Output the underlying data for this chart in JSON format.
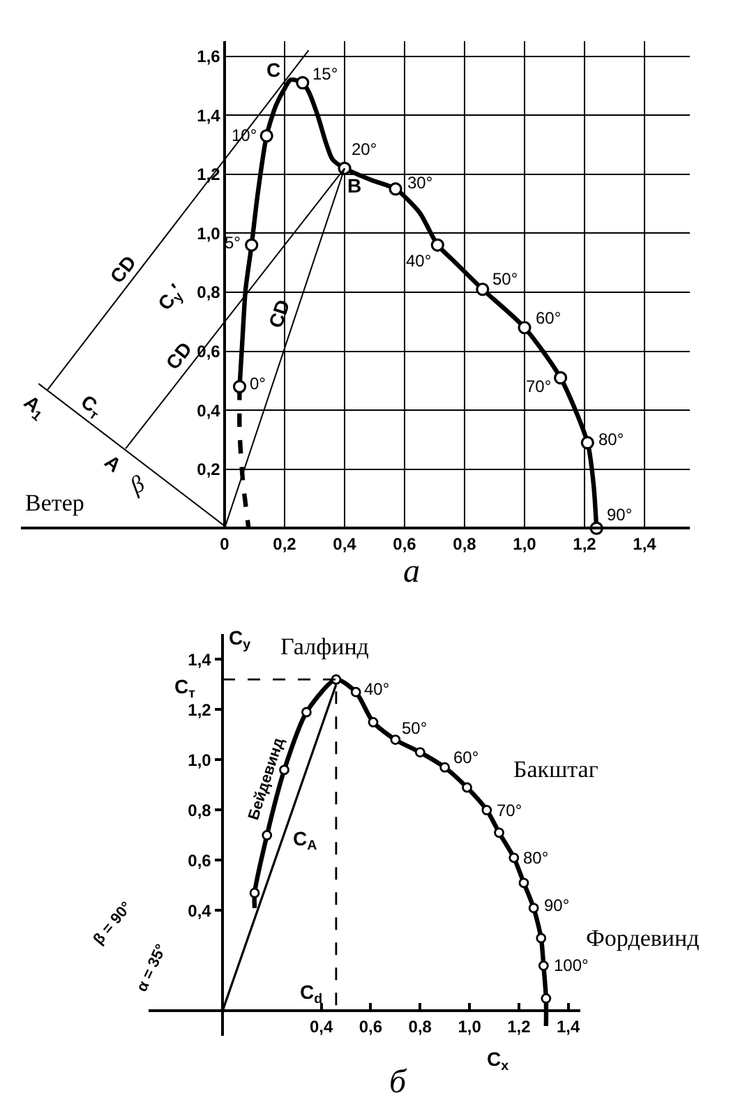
{
  "chart_data": [
    {
      "type": "line",
      "grid": true,
      "xlim": [
        -0.68,
        1.55
      ],
      "ylim": [
        0,
        1.65
      ],
      "xticks": [
        0,
        {
          "value": 0.2,
          "label": "0,2"
        },
        {
          "value": 0.4,
          "label": "0,4"
        },
        {
          "value": 0.6,
          "label": "0,6"
        },
        {
          "value": 0.8,
          "label": "0,8"
        },
        {
          "value": 1.0,
          "label": "1,0"
        },
        {
          "value": 1.2,
          "label": "1,2"
        },
        {
          "value": 1.4,
          "label": "1,4"
        }
      ],
      "yticks": [
        {
          "value": 0.2,
          "label": "0,2"
        },
        {
          "value": 0.4,
          "label": "0,4"
        },
        {
          "value": 0.6,
          "label": "0,6"
        },
        {
          "value": 0.8,
          "label": "0,8"
        },
        {
          "value": 1.0,
          "label": "1,0"
        },
        {
          "value": 1.2,
          "label": "1,2"
        },
        {
          "value": 1.4,
          "label": "1,4"
        },
        {
          "value": 1.6,
          "label": "1,6"
        }
      ],
      "series": [
        {
          "color": "#000000",
          "x": [
            0.05,
            0.06,
            0.07,
            0.09,
            0.11,
            0.14,
            0.17,
            0.2,
            0.22,
            0.26,
            0.28,
            0.31,
            0.34,
            0.36,
            0.4,
            0.49,
            0.57,
            0.65,
            0.71,
            0.76,
            0.86,
            1.0,
            1.12,
            1.21,
            1.23,
            1.24
          ],
          "values": [
            0.48,
            0.65,
            0.81,
            0.96,
            1.13,
            1.33,
            1.43,
            1.49,
            1.52,
            1.51,
            1.48,
            1.4,
            1.3,
            1.25,
            1.22,
            1.18,
            1.15,
            1.07,
            0.96,
            0.91,
            0.81,
            0.68,
            0.51,
            0.29,
            0.15,
            0
          ]
        },
        {
          "color": "#000000",
          "line_style": "dashed",
          "x": [
            0.05,
            0.05,
            0.06,
            0.08
          ],
          "values": [
            0.48,
            0.33,
            0.17,
            0
          ]
        },
        {
          "type": "scatter",
          "marker": "circle",
          "color": "#000000",
          "x": [
            0.05,
            0.09,
            0.14,
            0.26,
            0.4,
            0.57,
            0.71,
            0.86,
            1.0,
            1.12,
            1.21,
            1.24
          ],
          "values": [
            0.48,
            0.96,
            1.33,
            1.51,
            1.22,
            1.15,
            0.96,
            0.81,
            0.68,
            0.51,
            0.29,
            0
          ]
        },
        {
          "color": "#000000",
          "x": [
            -0.59,
            0.28
          ],
          "values": [
            0.47,
            1.62
          ]
        },
        {
          "color": "#000000",
          "x": [
            -0.33,
            0.4
          ],
          "values": [
            0.27,
            1.22
          ]
        },
        {
          "color": "#000000",
          "x": [
            0,
            0.4
          ],
          "values": [
            0,
            1.22
          ]
        },
        {
          "color": "#000000",
          "x": [
            -0.62,
            0.01
          ],
          "values": [
            0.49,
            0
          ]
        }
      ],
      "annotations": [
        {
          "text": "0°",
          "x": 0.05,
          "y": 0.48
        },
        {
          "text": "5°",
          "x": 0.09,
          "y": 0.96
        },
        {
          "text": "10°",
          "x": 0.14,
          "y": 1.33
        },
        {
          "text": "15°",
          "x": 0.26,
          "y": 1.51
        },
        {
          "text": "20°",
          "x": 0.4,
          "y": 1.22
        },
        {
          "text": "30°",
          "x": 0.57,
          "y": 1.15
        },
        {
          "text": "40°",
          "x": 0.71,
          "y": 0.96
        },
        {
          "text": "50°",
          "x": 0.86,
          "y": 0.81
        },
        {
          "text": "60°",
          "x": 1.0,
          "y": 0.68
        },
        {
          "text": "70°",
          "x": 1.12,
          "y": 0.51
        },
        {
          "text": "80°",
          "x": 1.21,
          "y": 0.29
        },
        {
          "text": "90°",
          "x": 1.24,
          "y": 0
        },
        {
          "text": "C",
          "x": 0.2,
          "y": 1.5
        },
        {
          "text": "B",
          "x": 0.4,
          "y": 1.22
        },
        "CD",
        "C$_{y}$′",
        "CD",
        "CD",
        "C$_{т}$",
        "A$_{1}$",
        "A",
        "β",
        "Ветер",
        "а"
      ]
    },
    {
      "type": "line",
      "xlim": [
        -0.3,
        1.45
      ],
      "ylim": [
        -0.1,
        1.5
      ],
      "xlabel": "C$_{x}$",
      "ylabel": "C$_{y}$",
      "xticks": [
        {
          "value": 0.4,
          "label": "0,4"
        },
        {
          "value": 0.6,
          "label": "0,6"
        },
        {
          "value": 0.8,
          "label": "0,8"
        },
        {
          "value": 1.0,
          "label": "1,0"
        },
        {
          "value": 1.2,
          "label": "1,2"
        },
        {
          "value": 1.4,
          "label": "1,4"
        }
      ],
      "yticks": [
        {
          "value": 0.4,
          "label": "0,4"
        },
        {
          "value": 0.6,
          "label": "0,6"
        },
        {
          "value": 0.8,
          "label": "0,8"
        },
        {
          "value": 1.0,
          "label": "1,0"
        },
        {
          "value": 1.2,
          "label": "1,2"
        },
        {
          "value": 1.4,
          "label": "1,4"
        }
      ],
      "series": [
        {
          "color": "#000000",
          "x": [
            0.13,
            0.13,
            0.18,
            0.25,
            0.34,
            0.46,
            0.54,
            0.61,
            0.7,
            0.8,
            0.9,
            0.99,
            1.07,
            1.12,
            1.18,
            1.22,
            1.26,
            1.29,
            1.3,
            1.31,
            1.31
          ],
          "values": [
            0.41,
            0.47,
            0.7,
            0.96,
            1.19,
            1.32,
            1.27,
            1.15,
            1.08,
            1.03,
            0.97,
            0.89,
            0.8,
            0.71,
            0.61,
            0.51,
            0.41,
            0.29,
            0.18,
            0.05,
            -0.06
          ]
        },
        {
          "type": "scatter",
          "marker": "circle",
          "color": "#000000",
          "x": [
            0.13,
            0.18,
            0.25,
            0.34,
            0.46,
            0.54,
            0.61,
            0.7,
            0.8,
            0.9,
            0.99,
            1.07,
            1.12,
            1.18,
            1.22,
            1.26,
            1.29,
            1.3,
            1.31
          ],
          "values": [
            0.47,
            0.7,
            0.96,
            1.19,
            1.32,
            1.27,
            1.15,
            1.08,
            1.03,
            0.97,
            0.89,
            0.8,
            0.71,
            0.61,
            0.51,
            0.41,
            0.29,
            0.18,
            0.05
          ]
        },
        {
          "color": "#000000",
          "x": [
            0,
            0.46
          ],
          "values": [
            0,
            1.3
          ]
        },
        {
          "color": "#000000",
          "line_style": "dashed",
          "x": [
            0,
            0.46,
            0.46
          ],
          "values": [
            1.32,
            1.32,
            0
          ]
        }
      ],
      "annotations": [
        {
          "text": "40°",
          "x": 0.54,
          "y": 1.27
        },
        {
          "text": "50°",
          "x": 0.7,
          "y": 1.08
        },
        {
          "text": "60°",
          "x": 0.9,
          "y": 0.97
        },
        {
          "text": "70°",
          "x": 1.07,
          "y": 0.8
        },
        {
          "text": "80°",
          "x": 1.18,
          "y": 0.61
        },
        {
          "text": "90°",
          "x": 1.26,
          "y": 0.41
        },
        {
          "text": "100°",
          "x": 1.3,
          "y": 0.18
        },
        "C$_{A}$",
        "C$_{т}$",
        "C$_{d}$",
        "Галфинд",
        "Бакштаг",
        "Фордевинд",
        "Бейдевинд",
        "β = 90°",
        "α = 35°",
        "б"
      ]
    }
  ]
}
